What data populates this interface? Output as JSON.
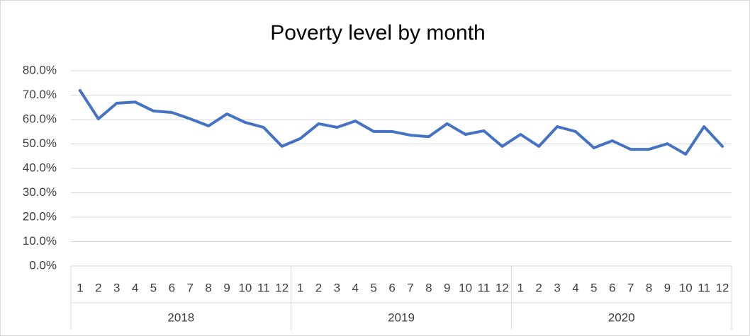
{
  "chart_data": {
    "type": "line",
    "title": "Poverty level by month",
    "categories": [
      "1",
      "2",
      "3",
      "4",
      "5",
      "6",
      "7",
      "8",
      "9",
      "10",
      "11",
      "12",
      "1",
      "2",
      "3",
      "4",
      "5",
      "6",
      "7",
      "8",
      "9",
      "10",
      "11",
      "12",
      "1",
      "2",
      "3",
      "4",
      "5",
      "6",
      "7",
      "8",
      "9",
      "10",
      "11",
      "12"
    ],
    "groups": [
      "2018",
      "2019",
      "2020"
    ],
    "values": [
      71.9,
      60.3,
      66.7,
      67.2,
      63.5,
      62.9,
      60.3,
      57.4,
      62.3,
      58.8,
      56.8,
      49.0,
      52.2,
      58.3,
      56.8,
      59.4,
      55.1,
      55.1,
      53.6,
      53.0,
      58.3,
      53.9,
      55.4,
      49.0,
      53.9,
      49.0,
      57.1,
      55.1,
      48.4,
      51.3,
      47.8,
      47.8,
      50.1,
      45.8,
      57.1,
      49.0
    ],
    "color": "#4472c4",
    "ylim": [
      0,
      80
    ],
    "yticks": [
      {
        "value": 0,
        "label": "0.0%"
      },
      {
        "value": 10,
        "label": "10.0%"
      },
      {
        "value": 20,
        "label": "20.0%"
      },
      {
        "value": 30,
        "label": "30.0%"
      },
      {
        "value": 40,
        "label": "40.0%"
      },
      {
        "value": 50,
        "label": "50.0%"
      },
      {
        "value": 60,
        "label": "60.0%"
      },
      {
        "value": 70,
        "label": "70.0%"
      },
      {
        "value": 80,
        "label": "80.0%"
      }
    ],
    "grid": true
  }
}
